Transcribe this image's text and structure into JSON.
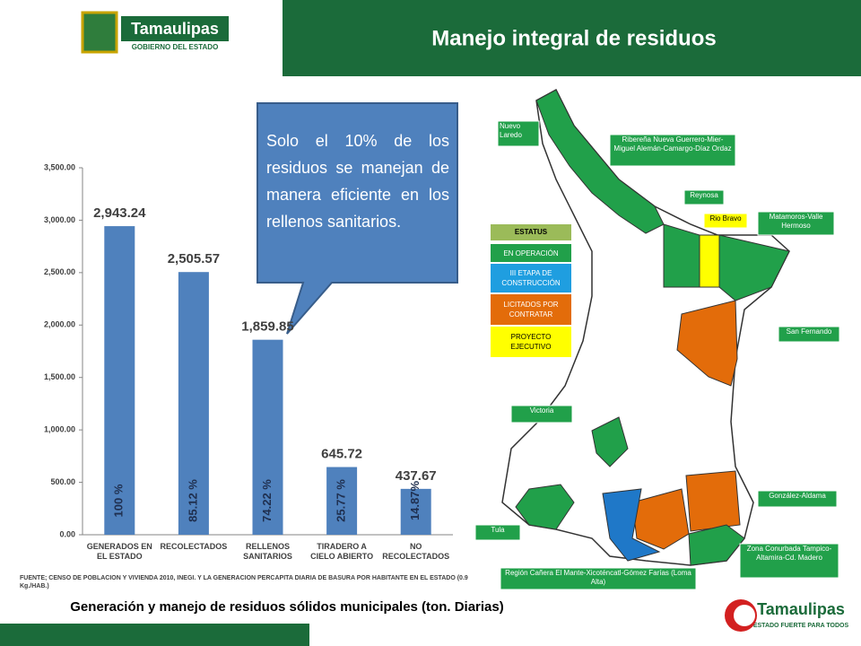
{
  "header": {
    "title": "Manejo integral de residuos",
    "logo_name": "Tamaulipas",
    "logo_subtitle": "GOBIERNO DEL ESTADO"
  },
  "callout": "Solo el 10% de los residuos se manejan de manera eficiente en los rellenos sanitarios.",
  "chart_data": {
    "type": "bar",
    "categories": [
      "GENERADOS EN EL ESTADO",
      "RECOLECTADOS",
      "RELLENOS SANITARIOS",
      "TIRADERO A CIELO ABIERTO",
      "NO RECOLECTADOS"
    ],
    "values": [
      2943.24,
      2505.57,
      1859.85,
      645.72,
      437.67
    ],
    "value_labels": [
      "2,943.24",
      "2,505.57",
      "1,859.85",
      "645.72",
      "437.67"
    ],
    "bar_annotations": [
      "100 %",
      "85.12 %",
      "74.22 %",
      "25.77 %",
      "14.87%"
    ],
    "color": "#4f81bd",
    "ylim": [
      0,
      3500
    ],
    "yticks": [
      {
        "value": 0,
        "label": "0.00"
      },
      {
        "value": 500,
        "label": "500.00"
      },
      {
        "value": 1000,
        "label": "1,000.00"
      },
      {
        "value": 1500,
        "label": "1,500.00"
      },
      {
        "value": 2000,
        "label": "2,000.00"
      },
      {
        "value": 2500,
        "label": "2,500.00"
      },
      {
        "value": 3000,
        "label": "3,000.00"
      },
      {
        "value": 3500,
        "label": "3,500.00"
      }
    ],
    "grid": false,
    "source": "FUENTE; CENSO DE POBLACION Y VIVIENDA 2010, INEGI. Y LA GENERACION PERCAPITA DIARIA DE BASURA POR HABITANTE EN EL ESTADO (0.9 Kg./HAB.)",
    "caption": "Generación y manejo de residuos sólidos municipales (ton. Diarias)"
  },
  "map": {
    "legend_title": "ESTATUS",
    "legend": [
      {
        "label": "EN OPERACIÓN",
        "color": "#21a04a"
      },
      {
        "label": "III ETAPA DE CONSTRUCCIÓN",
        "color": "#1f9ee0"
      },
      {
        "label": "LICITADOS POR CONTRATAR",
        "color": "#e36c0a"
      },
      {
        "label": "PROYECTO EJECUTIVO",
        "color": "#ffff00"
      }
    ],
    "labels": [
      "Nuevo Laredo",
      "Ribereña Nueva Guerrero-Mier-Miguel Alemán-Camargo-Díaz Ordaz",
      "Reynosa",
      "Rio Bravo",
      "Matamoros-Valle Hermoso",
      "San Fernando",
      "Victoria",
      "González-Aldama",
      "Tula",
      "Zona Conurbada Tampico-Altamira-Cd. Madero",
      "Región Cañera El Mante-Xicoténcatl-Gómez Farías (Loma Alta)"
    ]
  },
  "footer": {
    "logo_name": "Tamaulipas",
    "logo_subtitle": "ESTADO FUERTE PARA TODOS"
  }
}
